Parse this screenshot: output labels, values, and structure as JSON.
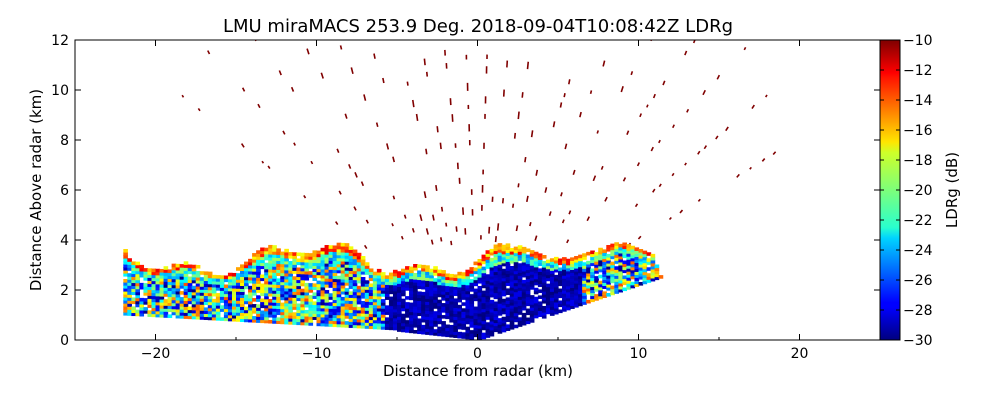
{
  "chart_data": {
    "type": "heatmap",
    "title": "LMU miraMACS 253.9 Deg. 2018-09-04T10:08:42Z  LDRg",
    "xlabel": "Distance from radar (km)",
    "ylabel": "Distance Above radar  (km)",
    "xlim": [
      -25,
      25
    ],
    "ylim": [
      0,
      12
    ],
    "x_ticks": [
      -20,
      -10,
      0,
      10,
      20
    ],
    "y_ticks": [
      0,
      2,
      4,
      6,
      8,
      10,
      12
    ],
    "colorbar": {
      "label": "LDRg (dB)",
      "range": [
        -30,
        -10
      ],
      "ticks": [
        -30,
        -28,
        -26,
        -24,
        -22,
        -20,
        -18,
        -16,
        -14,
        -12,
        -10
      ],
      "colormap": "jet"
    },
    "scan": {
      "azimuth_deg": 253.9,
      "instrument": "LMU miraMACS",
      "timestamp": "2018-09-04T10:08:42Z",
      "cloud_layer": {
        "base_left_km": 1.0,
        "top_km": 3.6,
        "x_extent_km": [
          -22,
          13
        ],
        "dominant_ldr_db": -29
      },
      "sparse_noise_ldr_db": -10,
      "sparse_noise_max_range_km": 22
    }
  }
}
